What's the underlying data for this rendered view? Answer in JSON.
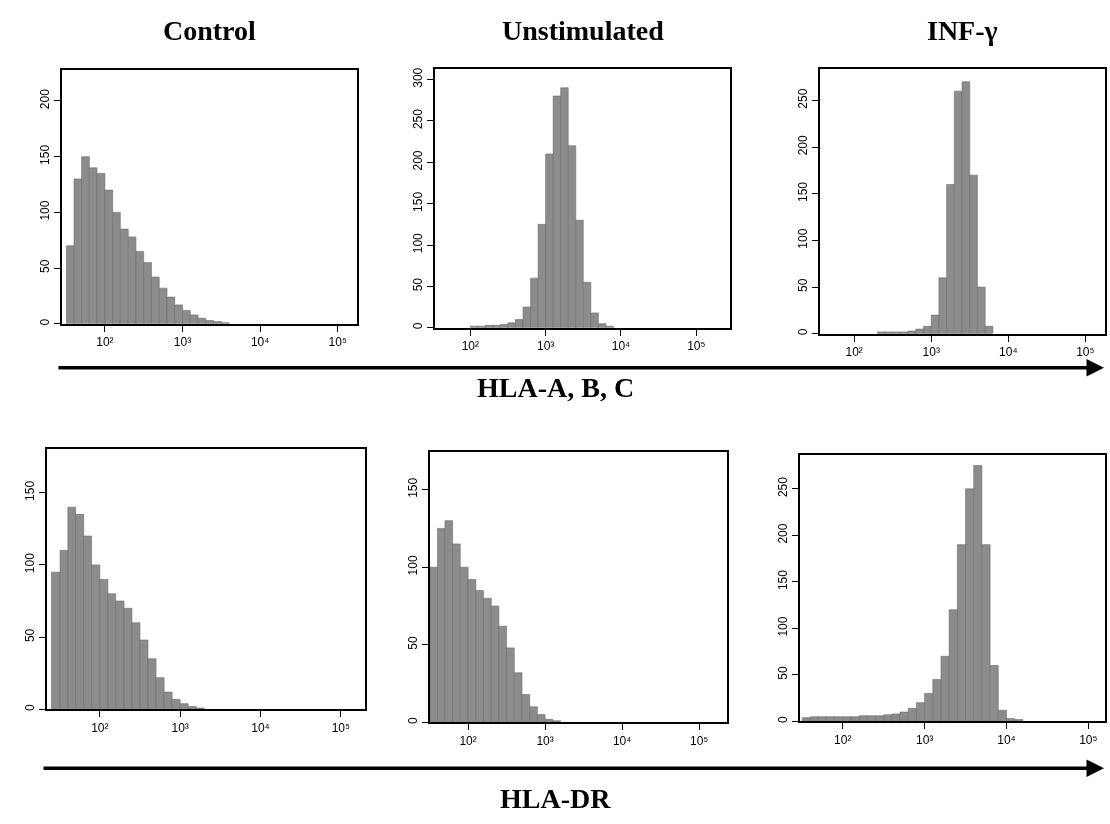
{
  "chart_data": [
    {
      "type": "histogram",
      "title": "Control",
      "color": "#8c8c8c",
      "xlim": [
        28,
        177000
      ],
      "ylim": [
        0,
        228
      ],
      "xticks": [
        {
          "value": 100,
          "label": "10²"
        },
        {
          "value": 1000,
          "label": "10³"
        },
        {
          "value": 10000,
          "label": "10⁴"
        },
        {
          "value": 100000,
          "label": "10⁵"
        }
      ],
      "yticks": [
        0,
        50,
        100,
        150,
        200
      ],
      "log": "x",
      "bins": [
        32,
        40,
        50,
        63,
        79,
        100,
        126,
        158,
        200,
        251,
        316,
        398,
        501,
        631,
        794,
        1000,
        1259,
        1585,
        1995,
        2512,
        3162,
        3981
      ],
      "values": [
        70,
        130,
        150,
        140,
        135,
        120,
        100,
        85,
        78,
        65,
        55,
        42,
        32,
        24,
        17,
        12,
        8,
        5,
        3,
        2,
        1
      ]
    },
    {
      "type": "histogram",
      "title": "Unstimulated",
      "xlabel": "HLA-A, B, C",
      "color": "#8c8c8c",
      "xlim": [
        34,
        280000
      ],
      "ylim": [
        0,
        313
      ],
      "xticks": [
        {
          "value": 100,
          "label": "10²"
        },
        {
          "value": 1000,
          "label": "10³"
        },
        {
          "value": 10000,
          "label": "10⁴"
        },
        {
          "value": 100000,
          "label": "10⁵"
        }
      ],
      "yticks": [
        0,
        50,
        100,
        150,
        200,
        250,
        300
      ],
      "log": "x",
      "bins": [
        100,
        126,
        158,
        200,
        251,
        316,
        398,
        501,
        631,
        794,
        1000,
        1259,
        1585,
        1995,
        2512,
        3162,
        3981,
        5012,
        6310,
        7943
      ],
      "values": [
        2,
        2,
        3,
        3,
        4,
        6,
        10,
        25,
        60,
        125,
        210,
        280,
        290,
        220,
        130,
        55,
        18,
        5,
        2
      ]
    },
    {
      "type": "histogram",
      "title": "INF-γ",
      "color": "#8c8c8c",
      "xlim": [
        36,
        180000
      ],
      "ylim": [
        0,
        284
      ],
      "xticks": [
        {
          "value": 100,
          "label": "10²"
        },
        {
          "value": 1000,
          "label": "10³"
        },
        {
          "value": 10000,
          "label": "10⁴"
        },
        {
          "value": 100000,
          "label": "10⁵"
        }
      ],
      "yticks": [
        0,
        50,
        100,
        150,
        200,
        250
      ],
      "log": "x",
      "bins": [
        200,
        251,
        316,
        398,
        501,
        631,
        794,
        1000,
        1259,
        1585,
        1995,
        2512,
        3162,
        3981,
        5012,
        6310
      ],
      "values": [
        2,
        2,
        2,
        2,
        3,
        5,
        8,
        20,
        60,
        160,
        260,
        270,
        170,
        50,
        8
      ]
    },
    {
      "type": "histogram",
      "color": "#8c8c8c",
      "xlim": [
        22,
        200000
      ],
      "ylim": [
        0,
        180
      ],
      "xticks": [
        {
          "value": 100,
          "label": "10²"
        },
        {
          "value": 1000,
          "label": "10³"
        },
        {
          "value": 10000,
          "label": "10⁴"
        },
        {
          "value": 100000,
          "label": "10⁵"
        }
      ],
      "yticks": [
        0,
        50,
        100,
        150
      ],
      "log": "x",
      "bins": [
        25,
        32,
        40,
        50,
        63,
        79,
        100,
        126,
        158,
        200,
        251,
        316,
        398,
        501,
        631,
        794,
        1000,
        1259,
        1585,
        1995
      ],
      "values": [
        95,
        110,
        140,
        135,
        120,
        100,
        90,
        80,
        75,
        70,
        60,
        48,
        35,
        22,
        12,
        7,
        4,
        2,
        1
      ]
    },
    {
      "type": "histogram",
      "xlabel": "HLA-DR",
      "color": "#8c8c8c",
      "xlim": [
        32,
        230000
      ],
      "ylim": [
        0,
        174
      ],
      "xticks": [
        {
          "value": 100,
          "label": "10²"
        },
        {
          "value": 1000,
          "label": "10³"
        },
        {
          "value": 10000,
          "label": "10⁴"
        },
        {
          "value": 100000,
          "label": "10⁵"
        }
      ],
      "yticks": [
        0,
        50,
        100,
        150
      ],
      "log": "x",
      "bins": [
        32,
        40,
        50,
        63,
        79,
        100,
        126,
        158,
        200,
        251,
        316,
        398,
        501,
        631,
        794,
        1000,
        1259,
        1585
      ],
      "values": [
        100,
        125,
        130,
        115,
        100,
        92,
        85,
        80,
        75,
        62,
        48,
        32,
        18,
        10,
        5,
        2,
        1
      ]
    },
    {
      "type": "histogram",
      "color": "#8c8c8c",
      "xlim": [
        30,
        160000
      ],
      "ylim": [
        0,
        286
      ],
      "xticks": [
        {
          "value": 100,
          "label": "10²"
        },
        {
          "value": 1000,
          "label": "10³"
        },
        {
          "value": 10000,
          "label": "10⁴"
        },
        {
          "value": 100000,
          "label": "10⁵"
        }
      ],
      "yticks": [
        0,
        50,
        100,
        150,
        200,
        250
      ],
      "log": "x",
      "bins": [
        32,
        40,
        50,
        63,
        79,
        100,
        126,
        158,
        200,
        251,
        316,
        398,
        501,
        631,
        794,
        1000,
        1259,
        1585,
        1995,
        2512,
        3162,
        3981,
        5012,
        6310,
        7943,
        10000,
        12589,
        15849
      ],
      "values": [
        4,
        5,
        5,
        5,
        5,
        5,
        5,
        6,
        6,
        6,
        7,
        8,
        10,
        14,
        20,
        30,
        45,
        70,
        120,
        190,
        250,
        275,
        190,
        60,
        12,
        3,
        2
      ]
    }
  ]
}
